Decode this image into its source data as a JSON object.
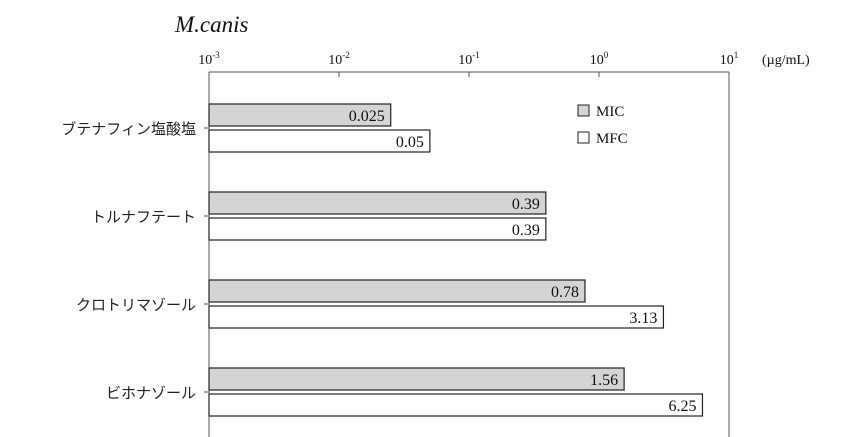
{
  "chart_data": {
    "type": "bar",
    "orientation": "horizontal",
    "title": "M.canis",
    "x_scale": "log",
    "xlim": [
      0.001,
      10
    ],
    "x_ticks": [
      {
        "base": "10",
        "exp": "-3"
      },
      {
        "base": "10",
        "exp": "-2"
      },
      {
        "base": "10",
        "exp": "-1"
      },
      {
        "base": "10",
        "exp": "0"
      },
      {
        "base": "10",
        "exp": "1"
      }
    ],
    "unit": "(µg/mL)",
    "categories": [
      "ブテナフィン塩酸塩",
      "トルナフテート",
      "クロトリマゾール",
      "ビホナゾール"
    ],
    "series": [
      {
        "name": "MIC",
        "color": "#d4d4d4",
        "values": [
          0.025,
          0.39,
          0.78,
          1.56
        ],
        "labels": [
          "0.025",
          "0.39",
          "0.78",
          "1.56"
        ]
      },
      {
        "name": "MFC",
        "color": "#ffffff",
        "values": [
          0.05,
          0.39,
          3.13,
          6.25
        ],
        "labels": [
          "0.05",
          "0.39",
          "3.13",
          "6.25"
        ]
      }
    ],
    "legend_position": "top-right",
    "grid": false
  }
}
